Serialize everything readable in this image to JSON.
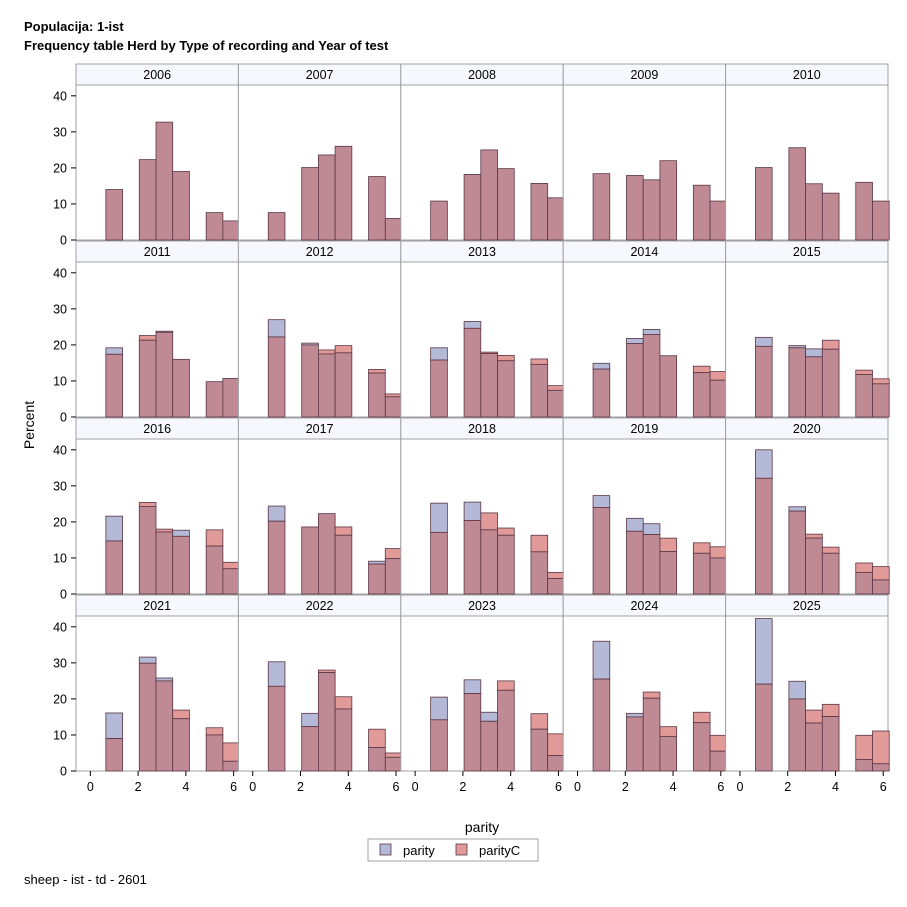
{
  "header": {
    "title_line1": "Populacija: 1-ist",
    "title_line2": "Frequency table Herd by Type of recording and Year of test"
  },
  "footer": {
    "text": "sheep - ist - td - 2601"
  },
  "colors": {
    "parity_fill": "#b3b9d6",
    "parityC_fill": "#e19a98",
    "overlap_fill": "#c08a95",
    "bar_stroke": "#5a3644",
    "panel_header_fill": "#f6f8fe",
    "frame": "#a0a0a0"
  },
  "chart_data": {
    "type": "bar",
    "layout": "panel-grid",
    "columns": 5,
    "rows": 4,
    "xlabel": "parity",
    "ylabel": "Percent",
    "xlim": [
      -0.6,
      6.2
    ],
    "ylim": [
      0,
      43
    ],
    "xticks": [
      0,
      2,
      4,
      6
    ],
    "yticks": [
      0,
      10,
      20,
      30,
      40
    ],
    "bin_width": 0.7,
    "bin_centers": [
      1,
      2.4,
      3.1,
      3.8,
      5.2,
      5.9
    ],
    "legend": [
      {
        "name": "parity",
        "color_key": "parity_fill"
      },
      {
        "name": "parityC",
        "color_key": "parityC_fill"
      }
    ],
    "panels": [
      {
        "label": "2006",
        "parity": [
          14,
          22.3,
          32.7,
          19,
          7.6,
          5.3
        ],
        "parityC": [
          14,
          22.3,
          32.7,
          19,
          7.6,
          5.3
        ]
      },
      {
        "label": "2007",
        "parity": [
          7.6,
          20.1,
          23.6,
          26,
          17.6,
          6
        ],
        "parityC": [
          7.6,
          20.1,
          23.6,
          26,
          17.6,
          6
        ]
      },
      {
        "label": "2008",
        "parity": [
          10.8,
          18.2,
          25,
          19.8,
          15.7,
          11.7
        ],
        "parityC": [
          10.8,
          18.2,
          25,
          19.8,
          15.7,
          11.7
        ]
      },
      {
        "label": "2009",
        "parity": [
          18.4,
          17.9,
          16.7,
          22,
          15.2,
          10.8
        ],
        "parityC": [
          18.4,
          17.9,
          16.7,
          22,
          15.2,
          10.8
        ]
      },
      {
        "label": "2010",
        "parity": [
          20.1,
          25.6,
          15.6,
          13,
          16,
          10.8
        ],
        "parityC": [
          20.1,
          25.6,
          15.6,
          13,
          16,
          10.8
        ]
      },
      {
        "label": "2011",
        "parity": [
          19.2,
          21.3,
          23.8,
          16,
          9.8,
          10.7
        ],
        "parityC": [
          17.4,
          22.6,
          23.5,
          16,
          9.8,
          10.7
        ]
      },
      {
        "label": "2012",
        "parity": [
          27,
          20.5,
          17.5,
          17.8,
          12.2,
          5.6
        ],
        "parityC": [
          22.2,
          20,
          18.6,
          19.8,
          13.2,
          6.4
        ]
      },
      {
        "label": "2013",
        "parity": [
          19.2,
          26.5,
          17.6,
          15.6,
          14.6,
          7.4
        ],
        "parityC": [
          15.8,
          24.6,
          18,
          17.1,
          16.1,
          8.7
        ]
      },
      {
        "label": "2014",
        "parity": [
          14.9,
          21.8,
          24.3,
          17,
          12.3,
          10.2
        ],
        "parityC": [
          13.3,
          20.4,
          22.9,
          17,
          14.1,
          12.6
        ]
      },
      {
        "label": "2015",
        "parity": [
          22.1,
          19.8,
          18.9,
          18.8,
          11.8,
          9.2
        ],
        "parityC": [
          19.6,
          19.2,
          16.7,
          21.3,
          13,
          10.6
        ]
      },
      {
        "label": "2016",
        "parity": [
          21.6,
          24.3,
          17.2,
          17.7,
          13.3,
          7
        ],
        "parityC": [
          14.7,
          25.4,
          18,
          16,
          17.8,
          8.8
        ]
      },
      {
        "label": "2017",
        "parity": [
          24.4,
          18.6,
          22.3,
          16.3,
          9.1,
          9.8
        ],
        "parityC": [
          20.2,
          18.6,
          22.3,
          18.6,
          8.3,
          12.6
        ]
      },
      {
        "label": "2018",
        "parity": [
          25.2,
          25.5,
          17.8,
          16.3,
          11.7,
          4.3
        ],
        "parityC": [
          17.1,
          20.4,
          22.5,
          18.3,
          16.3,
          6
        ]
      },
      {
        "label": "2019",
        "parity": [
          27.3,
          21,
          19.5,
          11.8,
          11.3,
          10
        ],
        "parityC": [
          24,
          17.4,
          16.5,
          15.5,
          14.2,
          13.1
        ]
      },
      {
        "label": "2020",
        "parity": [
          40,
          24.2,
          15.5,
          11.3,
          6,
          3.9
        ],
        "parityC": [
          32.1,
          23,
          16.6,
          13,
          8.6,
          7.6
        ]
      },
      {
        "label": "2021",
        "parity": [
          16.1,
          31.6,
          25.8,
          14.5,
          10,
          2.7
        ],
        "parityC": [
          9,
          29.9,
          25,
          16.9,
          12,
          7.8
        ]
      },
      {
        "label": "2022",
        "parity": [
          30.3,
          16,
          27.3,
          17.2,
          6.5,
          3.8
        ],
        "parityC": [
          23.5,
          12.3,
          28,
          20.6,
          11.6,
          5
        ]
      },
      {
        "label": "2023",
        "parity": [
          20.5,
          25.3,
          16.3,
          22.4,
          11.6,
          4.3
        ],
        "parityC": [
          14.2,
          21.5,
          13.8,
          25,
          15.9,
          10.3
        ]
      },
      {
        "label": "2024",
        "parity": [
          36,
          16,
          20.2,
          9.6,
          13.4,
          5.5
        ],
        "parityC": [
          25.5,
          15,
          21.9,
          12.3,
          16.3,
          9.9
        ]
      },
      {
        "label": "2025",
        "parity": [
          42.3,
          24.9,
          13.3,
          15.1,
          3.2,
          2
        ],
        "parityC": [
          24.1,
          20,
          16.9,
          18.5,
          9.9,
          11.1
        ]
      }
    ]
  }
}
